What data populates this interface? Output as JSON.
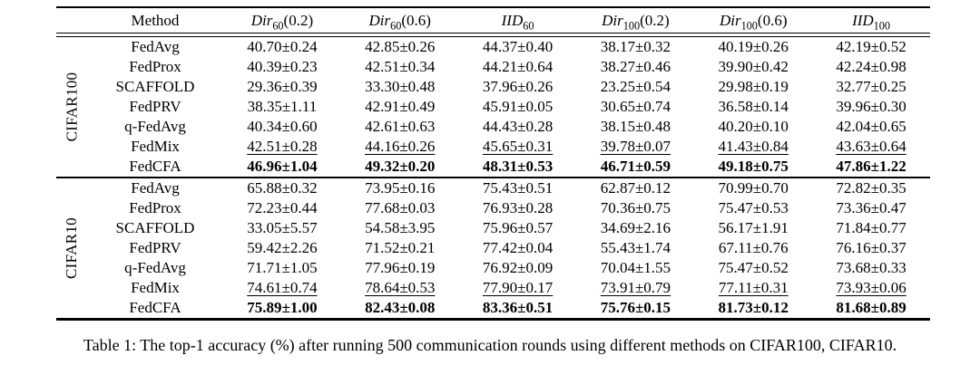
{
  "colors": {
    "text": "#000000",
    "background": "#ffffff",
    "rule": "#000000"
  },
  "caption": "Table 1: The top-1 accuracy (%) after running 500 communication rounds using different methods on CIFAR100, CIFAR10.",
  "table": {
    "columns": [
      {
        "label": "Method"
      },
      {
        "prefix": "Dir",
        "sub": "60",
        "suffix": "(0.2)"
      },
      {
        "prefix": "Dir",
        "sub": "60",
        "suffix": "(0.6)"
      },
      {
        "prefix": "IID",
        "sub": "60",
        "suffix": ""
      },
      {
        "prefix": "Dir",
        "sub": "100",
        "suffix": "(0.2)"
      },
      {
        "prefix": "Dir",
        "sub": "100",
        "suffix": "(0.6)"
      },
      {
        "prefix": "IID",
        "sub": "100",
        "suffix": ""
      }
    ],
    "groups": [
      {
        "label": "CIFAR100",
        "rows": [
          {
            "method": "FedAvg",
            "style": "normal",
            "values": [
              "40.70±0.24",
              "42.85±0.26",
              "44.37±0.40",
              "38.17±0.32",
              "40.19±0.26",
              "42.19±0.52"
            ]
          },
          {
            "method": "FedProx",
            "style": "normal",
            "values": [
              "40.39±0.23",
              "42.51±0.34",
              "44.21±0.64",
              "38.27±0.46",
              "39.90±0.42",
              "42.24±0.98"
            ]
          },
          {
            "method": "SCAFFOLD",
            "style": "normal",
            "values": [
              "29.36±0.39",
              "33.30±0.48",
              "37.96±0.26",
              "23.25±0.54",
              "29.98±0.19",
              "32.77±0.25"
            ]
          },
          {
            "method": "FedPRV",
            "style": "normal",
            "values": [
              "38.35±1.11",
              "42.91±0.49",
              "45.91±0.05",
              "30.65±0.74",
              "36.58±0.14",
              "39.96±0.30"
            ]
          },
          {
            "method": "q-FedAvg",
            "style": "normal",
            "values": [
              "40.34±0.60",
              "42.61±0.63",
              "44.43±0.28",
              "38.15±0.48",
              "40.20±0.10",
              "42.04±0.65"
            ]
          },
          {
            "method": "FedMix",
            "style": "underline",
            "values": [
              "42.51±0.28",
              "44.16±0.26",
              "45.65±0.31",
              "39.78±0.07",
              "41.43±0.84",
              "43.63±0.64"
            ]
          },
          {
            "method": "FedCFA",
            "style": "bold",
            "values": [
              "46.96±1.04",
              "49.32±0.20",
              "48.31±0.53",
              "46.71±0.59",
              "49.18±0.75",
              "47.86±1.22"
            ]
          }
        ]
      },
      {
        "label": "CIFAR10",
        "rows": [
          {
            "method": "FedAvg",
            "style": "normal",
            "values": [
              "65.88±0.32",
              "73.95±0.16",
              "75.43±0.51",
              "62.87±0.12",
              "70.99±0.70",
              "72.82±0.35"
            ]
          },
          {
            "method": "FedProx",
            "style": "normal",
            "values": [
              "72.23±0.44",
              "77.68±0.03",
              "76.93±0.28",
              "70.36±0.75",
              "75.47±0.53",
              "73.36±0.47"
            ]
          },
          {
            "method": "SCAFFOLD",
            "style": "normal",
            "values": [
              "33.05±5.57",
              "54.58±3.95",
              "75.96±0.57",
              "34.69±2.16",
              "56.17±1.91",
              "71.84±0.77"
            ]
          },
          {
            "method": "FedPRV",
            "style": "normal",
            "values": [
              "59.42±2.26",
              "71.52±0.21",
              "77.42±0.04",
              "55.43±1.74",
              "67.11±0.76",
              "76.16±0.37"
            ]
          },
          {
            "method": "q-FedAvg",
            "style": "normal",
            "values": [
              "71.71±1.05",
              "77.96±0.19",
              "76.92±0.09",
              "70.04±1.55",
              "75.47±0.52",
              "73.68±0.33"
            ]
          },
          {
            "method": "FedMix",
            "style": "underline",
            "values": [
              "74.61±0.74",
              "78.64±0.53",
              "77.90±0.17",
              "73.91±0.79",
              "77.11±0.31",
              "73.93±0.06"
            ]
          },
          {
            "method": "FedCFA",
            "style": "bold",
            "values": [
              "75.89±1.00",
              "82.43±0.08",
              "83.36±0.51",
              "75.76±0.15",
              "81.73±0.12",
              "81.68±0.89"
            ]
          }
        ]
      }
    ]
  }
}
